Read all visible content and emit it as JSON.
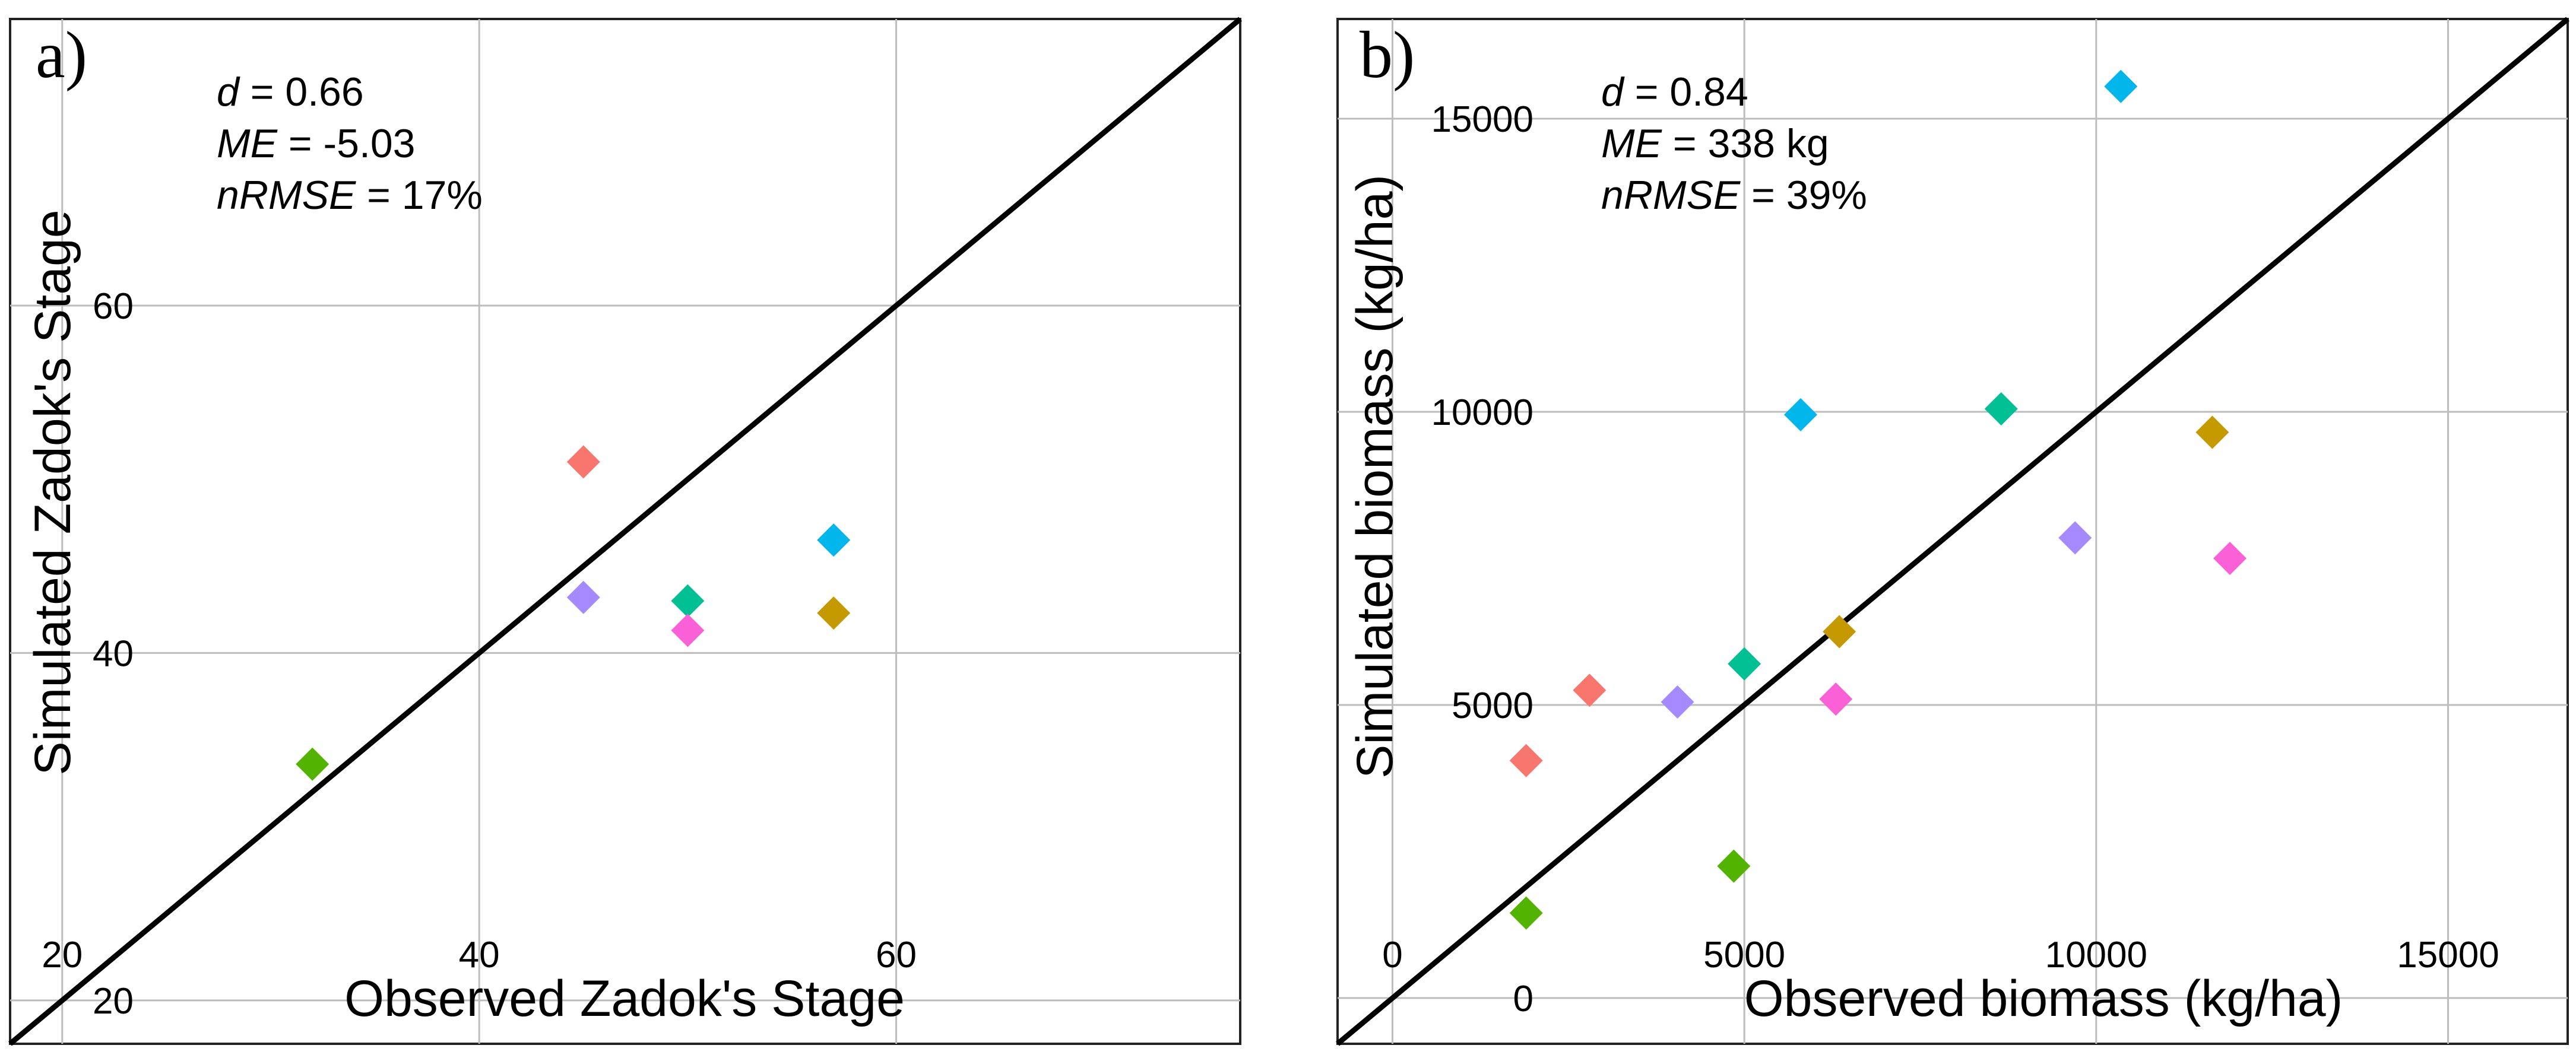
{
  "chart_data": [
    {
      "type": "scatter",
      "panel_label": "a)",
      "xlabel": "Observed Zadok's Stage",
      "ylabel": "Simulated Zadok's Stage",
      "xlim": [
        17.5,
        76.5
      ],
      "ylim": [
        17.5,
        76.5
      ],
      "xticks": [
        20,
        40,
        60
      ],
      "yticks": [
        20,
        40,
        60
      ],
      "xtick_labels": [
        "20",
        "40",
        "60"
      ],
      "ytick_labels": [
        "20",
        "40",
        "60"
      ],
      "grid": true,
      "identity_line": true,
      "marker": "diamond",
      "stats": [
        {
          "name": "d",
          "value": " = 0.66"
        },
        {
          "name": "ME",
          "value": " = -5.03"
        },
        {
          "name": "nRMSE",
          "value": " = 17%"
        }
      ],
      "points": [
        {
          "x": 32,
          "y": 33.6,
          "color": "#53B400"
        },
        {
          "x": 45,
          "y": 51,
          "color": "#F8766D"
        },
        {
          "x": 45,
          "y": 43.2,
          "color": "#A58AFF"
        },
        {
          "x": 50,
          "y": 43,
          "color": "#00C094"
        },
        {
          "x": 50,
          "y": 41.3,
          "color": "#FB61D7"
        },
        {
          "x": 57,
          "y": 46.5,
          "color": "#00B6EB"
        },
        {
          "x": 57,
          "y": 42.3,
          "color": "#C49A00"
        }
      ]
    },
    {
      "type": "scatter",
      "panel_label": "b)",
      "xlabel": "Observed biomass (kg/ha)",
      "ylabel": "Simulated biomass (kg/ha)",
      "xlim": [
        -780,
        16700
      ],
      "ylim": [
        -780,
        16700
      ],
      "xticks": [
        0,
        5000,
        10000,
        15000
      ],
      "yticks": [
        0,
        5000,
        10000,
        15000
      ],
      "xtick_labels": [
        "0",
        "5000",
        "10000",
        "15000"
      ],
      "ytick_labels": [
        "0",
        "5000",
        "10000",
        "15000"
      ],
      "grid": true,
      "identity_line": true,
      "marker": "diamond",
      "stats": [
        {
          "name": "d",
          "value": " = 0.84"
        },
        {
          "name": "ME",
          "value": " = 338 kg"
        },
        {
          "name": "nRMSE",
          "value": " = 39%"
        }
      ],
      "points": [
        {
          "x": 1900,
          "y": 1450,
          "color": "#53B400"
        },
        {
          "x": 1900,
          "y": 4050,
          "color": "#F8766D"
        },
        {
          "x": 2800,
          "y": 5250,
          "color": "#F8766D"
        },
        {
          "x": 4050,
          "y": 5050,
          "color": "#A58AFF"
        },
        {
          "x": 4850,
          "y": 2250,
          "color": "#53B400"
        },
        {
          "x": 5000,
          "y": 5700,
          "color": "#00C094"
        },
        {
          "x": 5800,
          "y": 9950,
          "color": "#00B6EB"
        },
        {
          "x": 6300,
          "y": 5100,
          "color": "#FB61D7"
        },
        {
          "x": 6350,
          "y": 6250,
          "color": "#C49A00"
        },
        {
          "x": 8650,
          "y": 10050,
          "color": "#00C094"
        },
        {
          "x": 9700,
          "y": 7850,
          "color": "#A58AFF"
        },
        {
          "x": 10350,
          "y": 15550,
          "color": "#00B6EB"
        },
        {
          "x": 11650,
          "y": 9650,
          "color": "#C49A00"
        },
        {
          "x": 11900,
          "y": 7500,
          "color": "#FB61D7"
        }
      ]
    }
  ],
  "colors": {
    "grid": "#bdbdbd",
    "frame": "#222222",
    "identity_line": "#000000",
    "text": "#000000"
  }
}
